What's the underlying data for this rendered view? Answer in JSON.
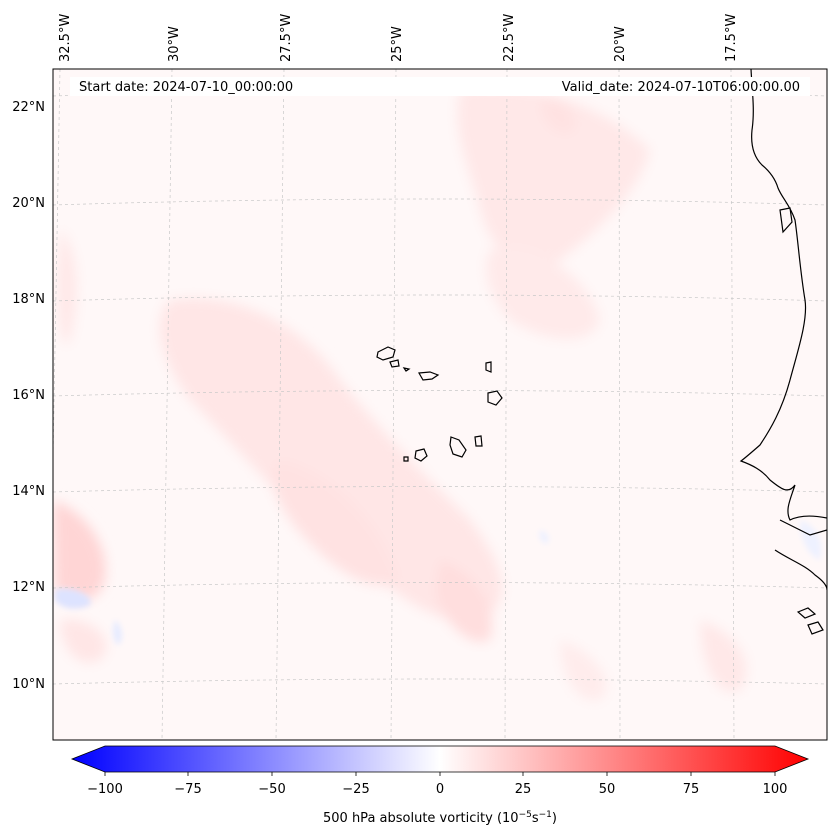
{
  "header": {
    "start_date": "Start date: 2024-07-10_00:00:00",
    "valid_date": "Valid_date: 2024-07-10T06:00:00.00"
  },
  "longitude_labels": [
    "32.5°W",
    "30°W",
    "27.5°W",
    "25°W",
    "22.5°W",
    "20°W",
    "17.5°W"
  ],
  "latitude_labels": [
    "22°N",
    "20°N",
    "18°N",
    "16°N",
    "14°N",
    "12°N",
    "10°N"
  ],
  "colorbar": {
    "ticks": [
      "−100",
      "−75",
      "−50",
      "−25",
      "0",
      "25",
      "50",
      "75",
      "100"
    ],
    "label": "500 hPa absolute vorticity (10",
    "label_exp1": "−5",
    "label_mid": "s",
    "label_exp2": "−1",
    "label_end": ")",
    "range": [
      -100,
      100
    ],
    "colormap": "bwr",
    "colors": {
      "min": "#0000ff",
      "mid": "#ffffff",
      "max": "#ff0000"
    }
  },
  "map": {
    "field_background": "#fff8f8",
    "coastline_color": "#000000",
    "gridline_color": "#c8c8c8"
  }
}
